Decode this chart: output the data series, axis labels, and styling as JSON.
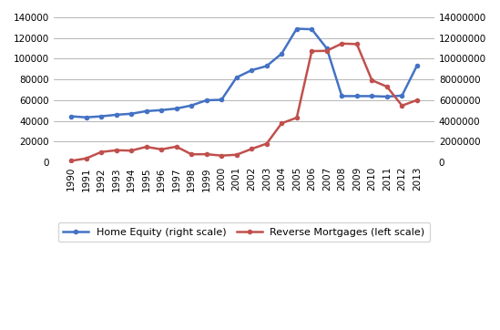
{
  "years": [
    1990,
    1991,
    1992,
    1993,
    1994,
    1995,
    1996,
    1997,
    1998,
    1999,
    2000,
    2001,
    2002,
    2003,
    2004,
    2005,
    2006,
    2007,
    2008,
    2009,
    2010,
    2011,
    2012,
    2013
  ],
  "home_equity": [
    44500,
    43500,
    44500,
    46000,
    47000,
    49500,
    50500,
    52000,
    55000,
    60000,
    60500,
    82000,
    89000,
    93000,
    105000,
    129000,
    128500,
    110000,
    64000,
    64000,
    64000,
    63500,
    64500,
    93500
  ],
  "reverse_mortgages": [
    157000,
    389000,
    1009000,
    1177000,
    1144000,
    1508000,
    1261000,
    1526000,
    786700,
    798200,
    660000,
    745600,
    1304800,
    1815300,
    3782900,
    4313100,
    10736700,
    10772200,
    11469200,
    11415500,
    7927100,
    7313400,
    5482200,
    6017700
  ],
  "home_equity_color": "#4472C4",
  "reverse_mortgage_color": "#C0504D",
  "home_equity_label": "Home Equity (right scale)",
  "reverse_mortgage_label": "Reverse Mortgages (left scale)",
  "left_ylim": [
    0,
    140000
  ],
  "right_ylim": [
    0,
    14000000
  ],
  "left_yticks": [
    0,
    20000,
    40000,
    60000,
    80000,
    100000,
    120000,
    140000
  ],
  "right_yticks": [
    0,
    2000000,
    4000000,
    6000000,
    8000000,
    10000000,
    12000000,
    14000000
  ],
  "background_color": "#FFFFFF",
  "grid_color": "#AAAAAA",
  "line_width": 1.8,
  "marker": "o",
  "marker_size": 3,
  "tick_fontsize": 7.5,
  "legend_fontsize": 8
}
